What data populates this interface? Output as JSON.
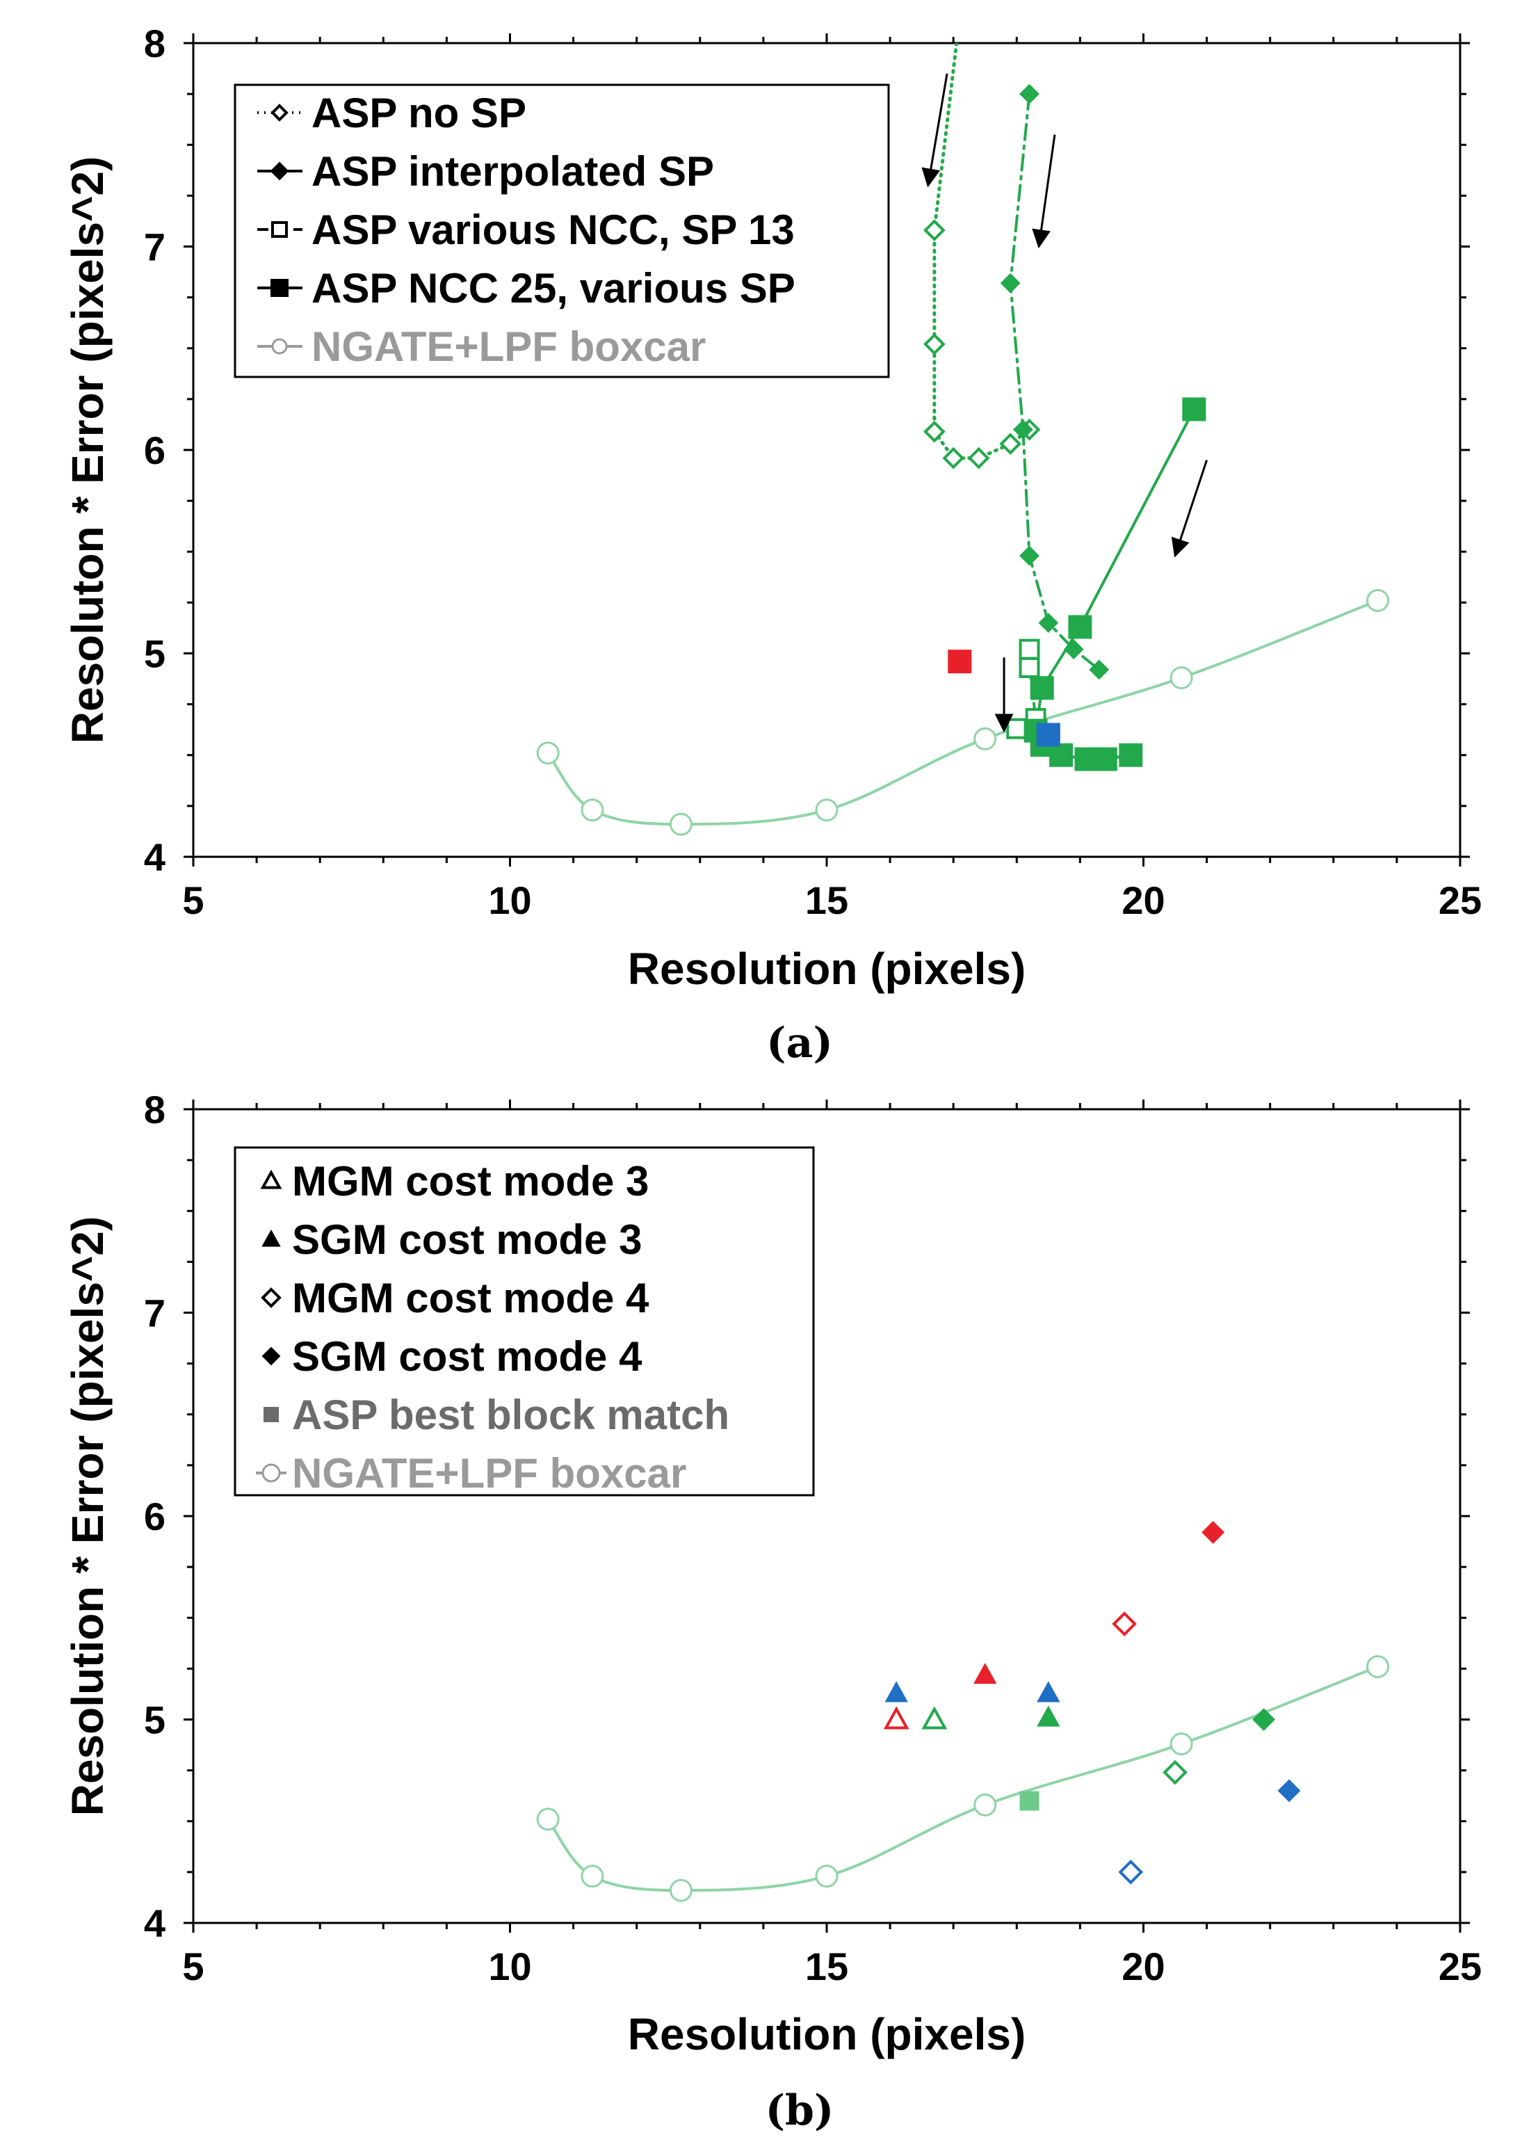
{
  "chart_data": [
    {
      "id": "a",
      "type": "scatter",
      "caption": "(a)",
      "xlabel": "Resolution (pixels)",
      "ylabel": "Resoluton * Error (pixels^2)",
      "xlim": [
        5,
        25
      ],
      "ylim": [
        4,
        8
      ],
      "xticks": [
        "5",
        "10",
        "15",
        "20",
        "25"
      ],
      "yticks": [
        "4",
        "5",
        "6",
        "7",
        "8"
      ],
      "legend_position": "top-left",
      "series": [
        {
          "name": "ASP no SP",
          "color": "#22a94b",
          "marker": "diamond-open",
          "line": "dotted",
          "points": [
            [
              17.05,
              8.0
            ],
            [
              16.7,
              7.08
            ],
            [
              16.7,
              6.52
            ],
            [
              16.7,
              6.09
            ],
            [
              17.0,
              5.96
            ],
            [
              17.4,
              5.96
            ],
            [
              17.9,
              6.03
            ],
            [
              18.2,
              6.1
            ]
          ]
        },
        {
          "name": "ASP interpolated SP",
          "color": "#22a94b",
          "marker": "diamond-filled",
          "line": "dashdot",
          "points": [
            [
              18.2,
              7.75
            ],
            [
              17.9,
              6.82
            ],
            [
              18.1,
              6.1
            ],
            [
              18.2,
              5.48
            ],
            [
              18.5,
              5.15
            ],
            [
              18.9,
              5.02
            ],
            [
              19.3,
              4.92
            ]
          ]
        },
        {
          "name": "ASP various NCC, SP 13",
          "color": "#22a94b",
          "marker": "square-open",
          "line": "dashed",
          "points": [
            [
              18.2,
              5.02
            ],
            [
              18.2,
              4.93
            ],
            [
              18.3,
              4.68
            ],
            [
              18.0,
              4.63
            ]
          ]
        },
        {
          "name": "ASP NCC 25, various SP",
          "color": "#22a94b",
          "marker": "square-filled",
          "line": "solid",
          "points": [
            [
              20.8,
              6.2
            ],
            [
              19.0,
              5.13
            ],
            [
              18.4,
              4.83
            ],
            [
              18.3,
              4.62
            ],
            [
              18.4,
              4.55
            ],
            [
              18.7,
              4.5
            ],
            [
              19.1,
              4.48
            ],
            [
              19.4,
              4.48
            ],
            [
              19.8,
              4.5
            ]
          ]
        },
        {
          "name": "NGATE+LPF boxcar",
          "color": "#8fd4a6",
          "marker": "circle-open",
          "line": "smooth",
          "points": [
            [
              10.6,
              4.51
            ],
            [
              11.3,
              4.23
            ],
            [
              12.7,
              4.16
            ],
            [
              15.0,
              4.23
            ],
            [
              17.5,
              4.58
            ],
            [
              20.6,
              4.88
            ],
            [
              23.7,
              5.26
            ]
          ]
        }
      ],
      "extra_points": [
        {
          "name": "red square",
          "color": "#e8202a",
          "marker": "square-filled",
          "x": 17.1,
          "y": 4.96
        },
        {
          "name": "blue square",
          "color": "#1f6fc4",
          "marker": "square-filled",
          "x": 18.5,
          "y": 4.6
        }
      ],
      "arrows": [
        {
          "from": [
            16.9,
            7.85
          ],
          "to": [
            16.6,
            7.3
          ]
        },
        {
          "from": [
            18.6,
            7.55
          ],
          "to": [
            18.35,
            7.0
          ]
        },
        {
          "from": [
            21.0,
            5.95
          ],
          "to": [
            20.5,
            5.48
          ]
        },
        {
          "from": [
            17.8,
            4.98
          ],
          "to": [
            17.8,
            4.62
          ]
        }
      ]
    },
    {
      "id": "b",
      "type": "scatter",
      "caption": "(b)",
      "xlabel": "Resolution (pixels)",
      "ylabel": "Resolution * Error (pixels^2)",
      "xlim": [
        5,
        25
      ],
      "ylim": [
        4,
        8
      ],
      "xticks": [
        "5",
        "10",
        "15",
        "20",
        "25"
      ],
      "yticks": [
        "4",
        "5",
        "6",
        "7",
        "8"
      ],
      "legend_position": "top-left",
      "legend": [
        {
          "name": "MGM cost mode 3",
          "marker": "triangle-open",
          "color": "#000000"
        },
        {
          "name": "SGM cost mode 3",
          "marker": "triangle-filled",
          "color": "#000000"
        },
        {
          "name": "MGM cost mode 4",
          "marker": "diamond-open",
          "color": "#000000"
        },
        {
          "name": "SGM cost mode 4",
          "marker": "diamond-filled",
          "color": "#000000"
        },
        {
          "name": "ASP best block match",
          "marker": "square-filled",
          "color": "#6b6b6b"
        },
        {
          "name": "NGATE+LPF boxcar",
          "marker": "circle-open",
          "color": "#9a9a9a"
        }
      ],
      "points": [
        {
          "series": "SGM cost mode 3",
          "color": "#1f6fc4",
          "x": 16.1,
          "y": 5.13
        },
        {
          "series": "MGM cost mode 3",
          "color": "#e8202a",
          "x": 16.1,
          "y": 5.0
        },
        {
          "series": "MGM cost mode 3",
          "color": "#22a94b",
          "x": 16.7,
          "y": 5.0
        },
        {
          "series": "SGM cost mode 3",
          "color": "#e8202a",
          "x": 17.5,
          "y": 5.22
        },
        {
          "series": "SGM cost mode 3",
          "color": "#1f6fc4",
          "x": 18.5,
          "y": 5.13
        },
        {
          "series": "SGM cost mode 3",
          "color": "#22a94b",
          "x": 18.5,
          "y": 5.01
        },
        {
          "series": "MGM cost mode 4",
          "color": "#e8202a",
          "x": 19.7,
          "y": 5.47
        },
        {
          "series": "SGM cost mode 4",
          "color": "#e8202a",
          "x": 21.1,
          "y": 5.92
        },
        {
          "series": "MGM cost mode 4",
          "color": "#22a94b",
          "x": 20.5,
          "y": 4.74
        },
        {
          "series": "SGM cost mode 4",
          "color": "#22a94b",
          "x": 21.9,
          "y": 5.0
        },
        {
          "series": "SGM cost mode 4",
          "color": "#1f6fc4",
          "x": 22.3,
          "y": 4.65
        },
        {
          "series": "MGM cost mode 4",
          "color": "#1f6fc4",
          "x": 19.8,
          "y": 4.25
        },
        {
          "series": "ASP best block match",
          "color": "#6ec98c",
          "x": 18.2,
          "y": 4.6
        }
      ],
      "curve": {
        "name": "NGATE+LPF boxcar",
        "color": "#8fd4a6",
        "points": [
          [
            10.6,
            4.51
          ],
          [
            11.3,
            4.23
          ],
          [
            12.7,
            4.16
          ],
          [
            15.0,
            4.23
          ],
          [
            17.5,
            4.58
          ],
          [
            20.6,
            4.88
          ],
          [
            23.7,
            5.26
          ]
        ]
      }
    }
  ]
}
